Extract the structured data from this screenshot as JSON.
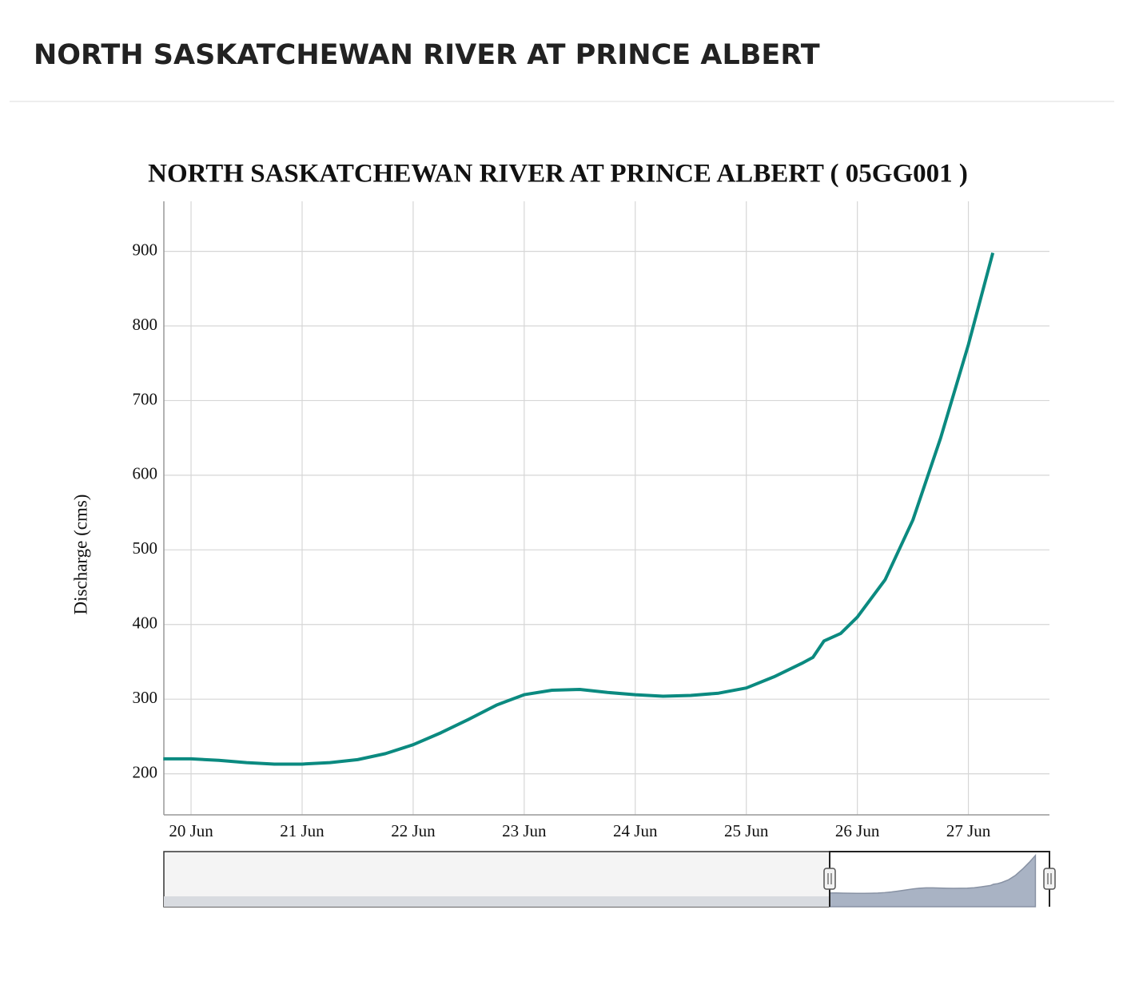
{
  "header": {
    "title": "NORTH SASKATCHEWAN RIVER AT PRINCE ALBERT"
  },
  "chart_data": {
    "type": "line",
    "title": "NORTH SASKATCHEWAN RIVER AT PRINCE ALBERT ( 05GG001 )",
    "y_label": "Discharge (cms)",
    "x": [
      19.75,
      20.0,
      20.25,
      20.5,
      20.75,
      21.0,
      21.25,
      21.5,
      21.75,
      22.0,
      22.25,
      22.5,
      22.75,
      23.0,
      23.25,
      23.5,
      23.75,
      24.0,
      24.25,
      24.5,
      24.75,
      25.0,
      25.25,
      25.5,
      25.6,
      25.7,
      25.85,
      26.0,
      26.25,
      26.5,
      26.75,
      27.0,
      27.22
    ],
    "values": [
      220,
      220,
      218,
      215,
      213,
      213,
      215,
      219,
      227,
      239,
      255,
      273,
      292,
      306,
      312,
      313,
      309,
      306,
      304,
      305,
      308,
      315,
      330,
      348,
      356,
      378,
      388,
      410,
      460,
      540,
      650,
      775,
      898
    ],
    "color": "#0b8a80",
    "xlim": [
      19.755,
      27.73
    ],
    "xticks": [
      {
        "value": 20,
        "label": "20 Jun"
      },
      {
        "value": 21,
        "label": "21 Jun"
      },
      {
        "value": 22,
        "label": "22 Jun"
      },
      {
        "value": 23,
        "label": "23 Jun"
      },
      {
        "value": 24,
        "label": "24 Jun"
      },
      {
        "value": 25,
        "label": "25 Jun"
      },
      {
        "value": 26,
        "label": "26 Jun"
      },
      {
        "value": 27,
        "label": "27 Jun"
      }
    ],
    "ylim": [
      145,
      967
    ],
    "yticks": [
      200,
      300,
      400,
      500,
      600,
      700,
      800,
      900
    ],
    "grid": true
  }
}
